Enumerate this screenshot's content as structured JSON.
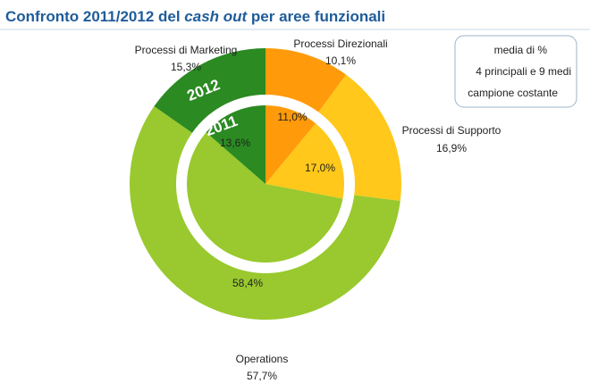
{
  "chart_data": {
    "type": "pie",
    "title": [
      "Confronto 2011/2012 del ",
      "cash out",
      " per aree funzionali"
    ],
    "categories": [
      "Processi Direzionali",
      "Processi di Supporto",
      "Operations",
      "Processi di Marketing"
    ],
    "colors": [
      "#ff9a0a",
      "#ffc81a",
      "#99c92e",
      "#2b8a22"
    ],
    "series": [
      {
        "name": "2012",
        "values": [
          10.1,
          16.9,
          57.7,
          15.3
        ],
        "value_labels": [
          "10,1%",
          "16,9%",
          "57,7%",
          "15,3%"
        ]
      },
      {
        "name": "2011",
        "values": [
          11.0,
          17.0,
          58.4,
          13.6
        ],
        "value_labels": [
          "11,0%",
          "17,0%",
          "58,4%",
          "13,6%"
        ]
      }
    ],
    "note": [
      "media di %",
      "4 principali e 9 medi",
      "campione costante"
    ]
  }
}
